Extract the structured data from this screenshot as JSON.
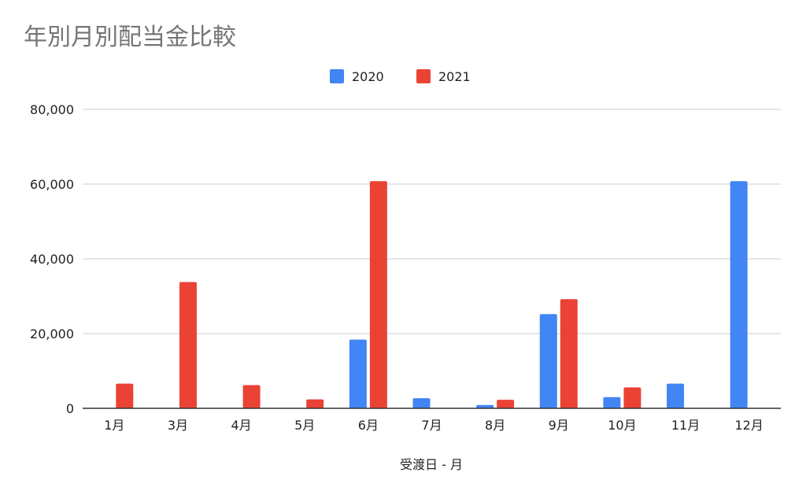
{
  "chart_data": {
    "type": "bar",
    "title": "年別月別配当金比較",
    "xlabel": "受渡日 - 月",
    "ylabel": "",
    "categories": [
      "1月",
      "3月",
      "4月",
      "5月",
      "6月",
      "7月",
      "8月",
      "9月",
      "10月",
      "11月",
      "12月"
    ],
    "series": [
      {
        "name": "2020",
        "color": "#4285f4",
        "values": [
          0,
          0,
          0,
          0,
          18400,
          2700,
          900,
          25200,
          3000,
          6600,
          60800
        ]
      },
      {
        "name": "2021",
        "color": "#ea4335",
        "values": [
          6600,
          33800,
          6200,
          2400,
          60800,
          0,
          2300,
          29200,
          5600,
          0,
          0
        ]
      }
    ],
    "ylim": [
      0,
      80000
    ],
    "yticks": [
      0,
      20000,
      40000,
      60000,
      80000
    ],
    "ytick_labels": [
      "0",
      "20,000",
      "40,000",
      "60,000",
      "80,000"
    ],
    "grid": true,
    "legend_position": "top-center"
  }
}
